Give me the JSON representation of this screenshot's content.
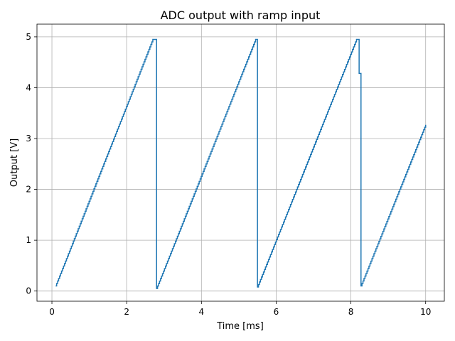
{
  "chart_data": {
    "type": "line",
    "title": "ADC output with ramp input",
    "xlabel": "Time [ms]",
    "ylabel": "Output [V]",
    "xlim": [
      -0.4,
      10.5
    ],
    "ylim": [
      -0.2,
      5.25
    ],
    "xticks": [
      0,
      2,
      4,
      6,
      8,
      10
    ],
    "yticks": [
      0,
      1,
      2,
      3,
      4,
      5
    ],
    "grid": true,
    "quantization_step_v": 0.049,
    "series": [
      {
        "color": "#1f77b4",
        "segments": [
          {
            "x": [
              0.1,
              2.7
            ],
            "y": [
              0.1,
              4.95
            ]
          },
          {
            "x": [
              2.7,
              2.8
            ],
            "y": [
              4.95,
              4.95
            ]
          },
          {
            "x": [
              2.8,
              5.45
            ],
            "y": [
              0.05,
              4.95
            ]
          },
          {
            "x": [
              5.45,
              5.5
            ],
            "y": [
              4.95,
              4.95
            ]
          },
          {
            "x": [
              5.5,
              8.15
            ],
            "y": [
              0.08,
              4.95
            ]
          },
          {
            "x": [
              8.15,
              8.22
            ],
            "y": [
              4.95,
              4.95
            ]
          },
          {
            "x": [
              8.22,
              8.27
            ],
            "y": [
              4.28,
              4.28
            ]
          },
          {
            "x": [
              8.27,
              10.0
            ],
            "y": [
              0.1,
              3.27
            ]
          }
        ]
      }
    ]
  }
}
